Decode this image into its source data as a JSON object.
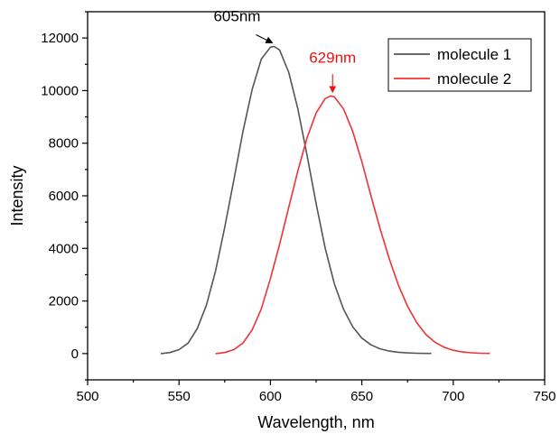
{
  "chart_data": {
    "type": "line",
    "title": "",
    "xlabel": "Wavelength, nm",
    "ylabel": "Intensity",
    "xlim": [
      500,
      750
    ],
    "ylim": [
      -1000,
      13000
    ],
    "x_ticks": [
      500,
      550,
      600,
      650,
      700,
      750
    ],
    "y_ticks": [
      0,
      2000,
      4000,
      6000,
      8000,
      10000,
      12000
    ],
    "grid": false,
    "legend": {
      "placement": "top-right"
    },
    "series": [
      {
        "name": "molecule 1",
        "color": "#555555",
        "x": [
          540,
          545,
          550,
          555,
          560,
          565,
          570,
          575,
          580,
          585,
          590,
          595,
          600,
          602,
          605,
          610,
          615,
          620,
          625,
          630,
          635,
          640,
          645,
          650,
          655,
          660,
          665,
          670,
          675,
          680,
          685,
          688
        ],
        "y": [
          0,
          40,
          150,
          400,
          950,
          1850,
          3150,
          4800,
          6600,
          8450,
          10050,
          11200,
          11650,
          11680,
          11550,
          10700,
          9300,
          7550,
          5700,
          4000,
          2650,
          1680,
          1020,
          590,
          330,
          180,
          95,
          50,
          25,
          12,
          6,
          4
        ]
      },
      {
        "name": "molecule 2",
        "color": "#ee3333",
        "x": [
          570,
          575,
          580,
          585,
          590,
          595,
          600,
          605,
          610,
          615,
          620,
          625,
          630,
          633,
          635,
          640,
          645,
          650,
          655,
          660,
          665,
          670,
          675,
          680,
          685,
          690,
          695,
          700,
          705,
          710,
          715,
          720
        ],
        "y": [
          0,
          40,
          150,
          400,
          900,
          1700,
          2850,
          4150,
          5550,
          6950,
          8200,
          9150,
          9700,
          9800,
          9760,
          9300,
          8450,
          7300,
          6000,
          4750,
          3600,
          2600,
          1800,
          1180,
          730,
          430,
          240,
          125,
          60,
          28,
          12,
          5
        ]
      }
    ],
    "annotations": [
      {
        "text": "605nm",
        "x": 603,
        "y": 11680,
        "color": "#000000"
      },
      {
        "text": "629nm",
        "x": 634,
        "y": 9800,
        "color": "#ee1111"
      }
    ]
  }
}
